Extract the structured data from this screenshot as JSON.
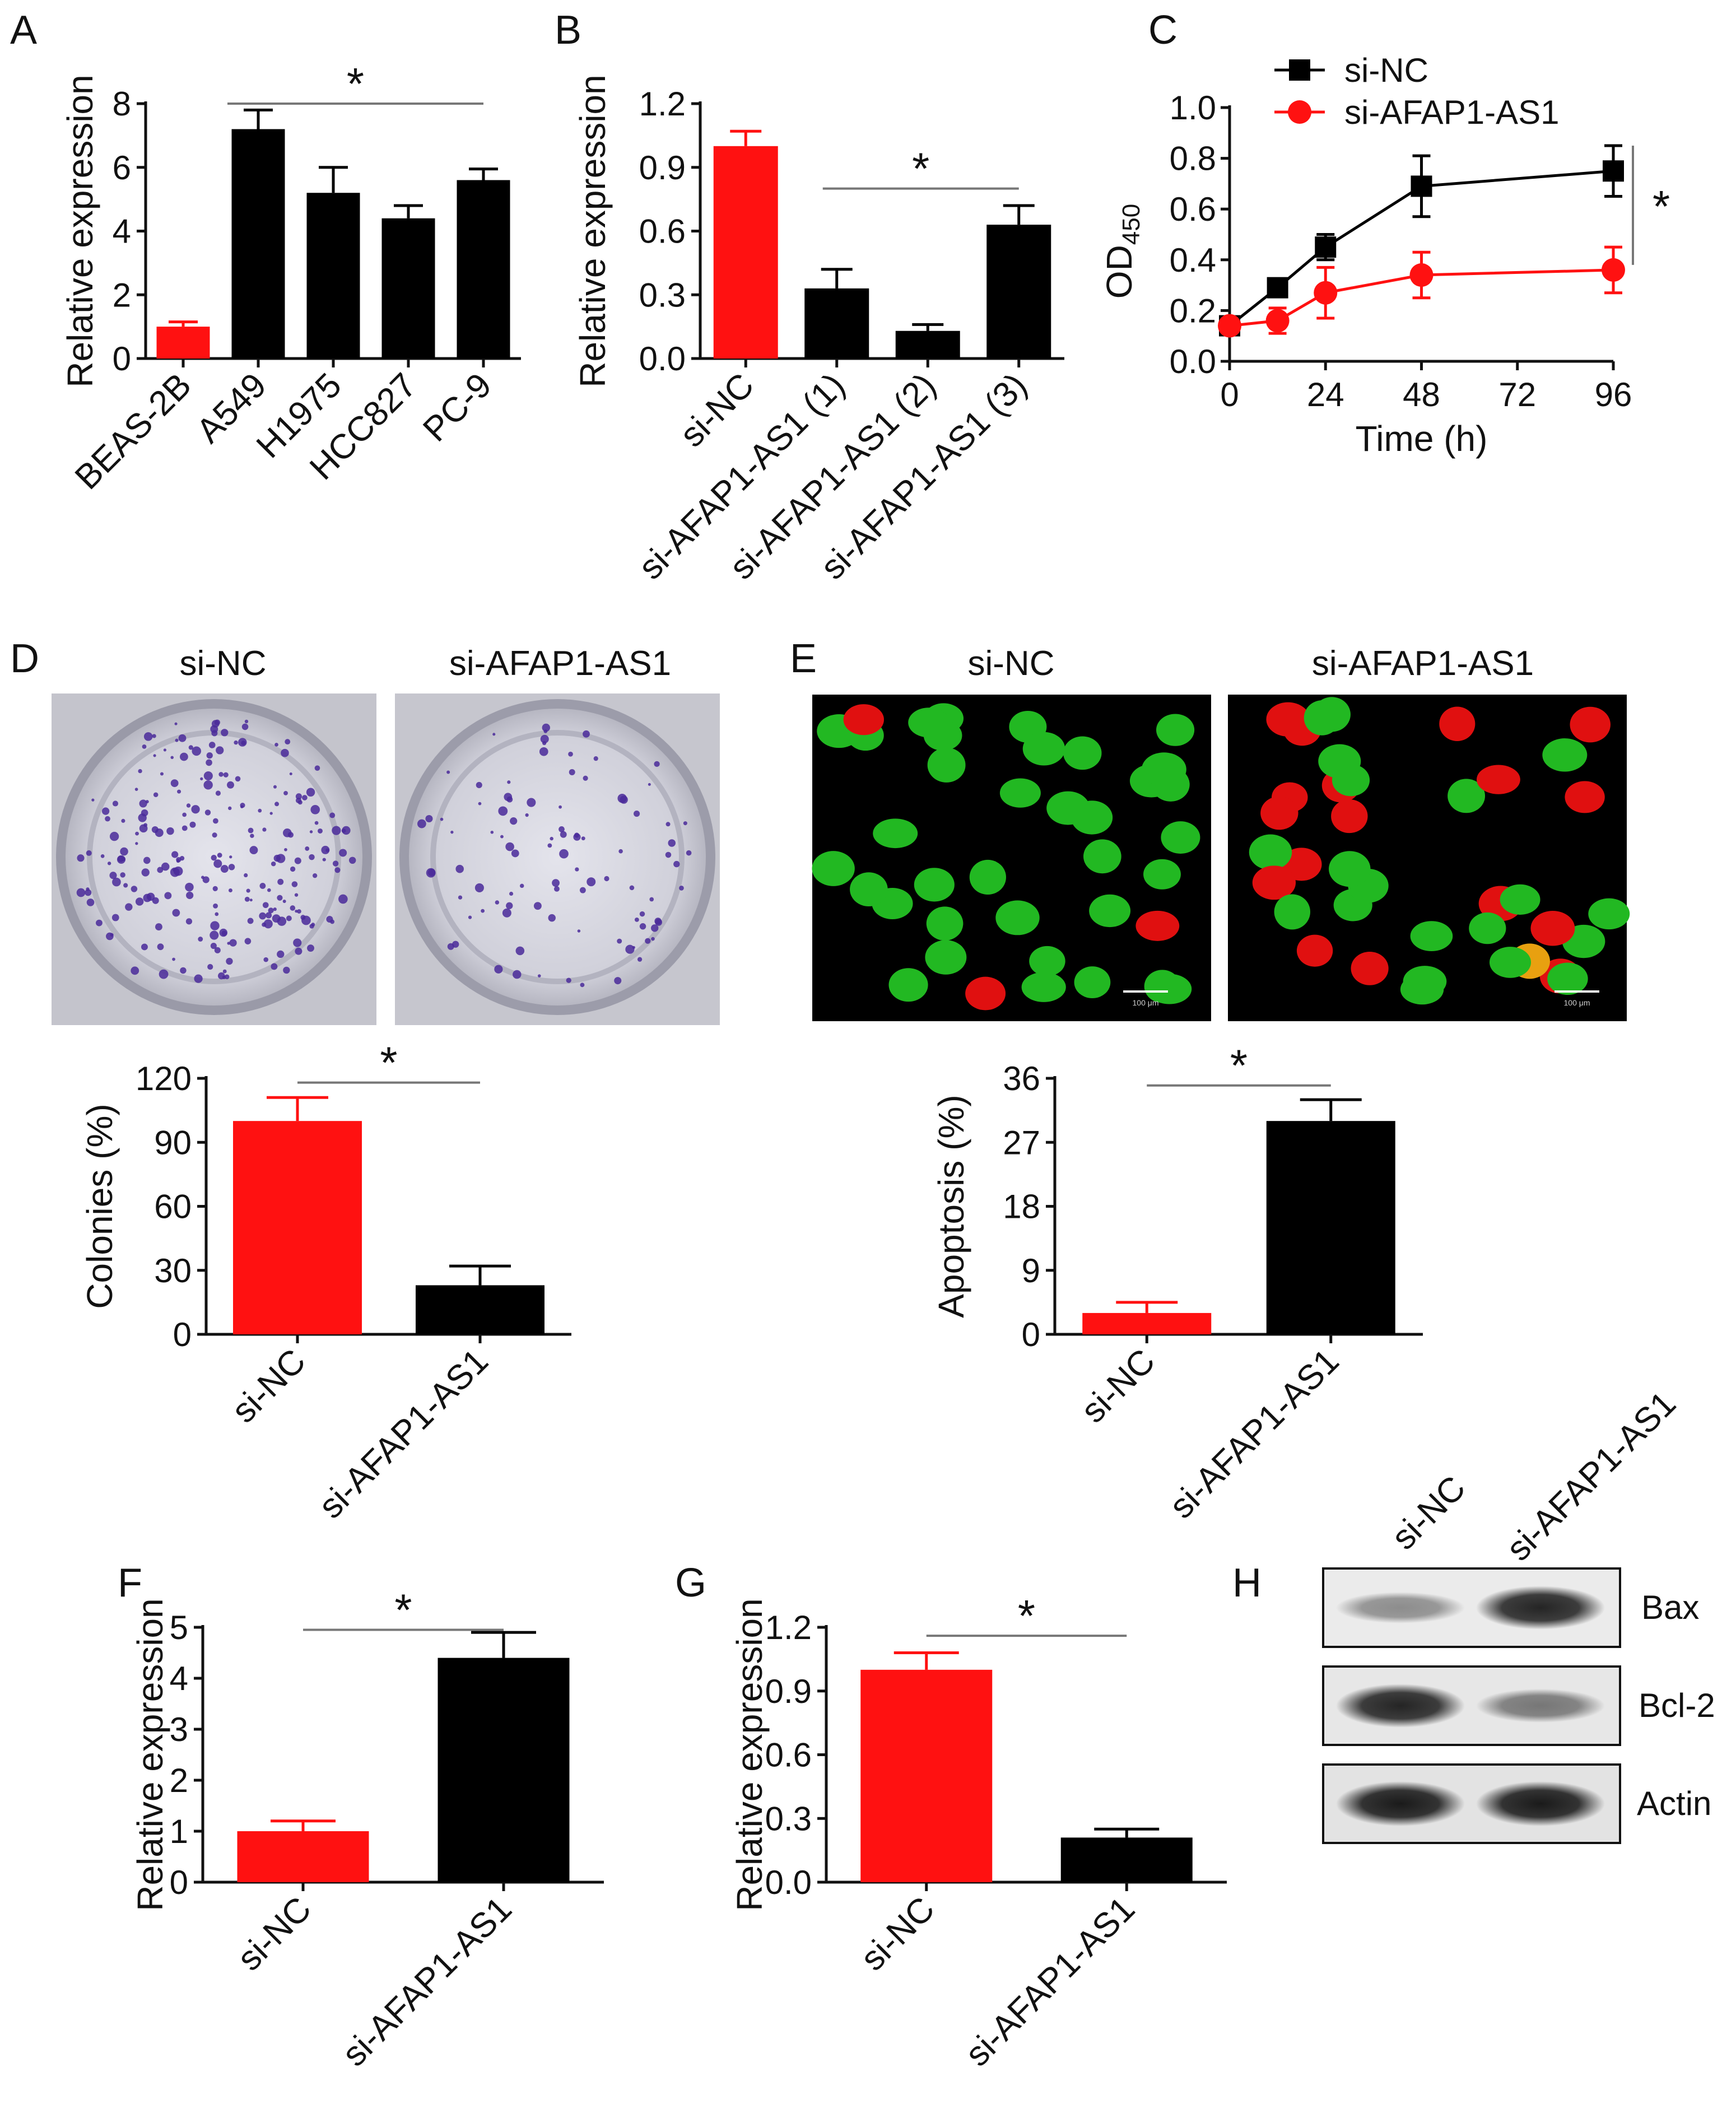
{
  "figure": {
    "panels": [
      "A",
      "B",
      "C",
      "D",
      "E",
      "F",
      "G",
      "H"
    ],
    "significance_mark": "*",
    "colors": {
      "control": "#ff1111",
      "treatment": "#000000",
      "bracket": "#777777"
    }
  },
  "chart_data": [
    {
      "panel": "A",
      "type": "bar",
      "categories": [
        "BEAS-2B",
        "A549",
        "H1975",
        "HCC827",
        "PC-9"
      ],
      "values": [
        1.0,
        7.2,
        5.2,
        4.4,
        5.6
      ],
      "errors": [
        0.15,
        0.6,
        0.8,
        0.4,
        0.35
      ],
      "colors": [
        "#ff1111",
        "#000000",
        "#000000",
        "#000000",
        "#000000"
      ],
      "ylabel": "Relative expression",
      "ylim": [
        0,
        8
      ],
      "yticks": [
        "0",
        "2",
        "4",
        "6",
        "8"
      ],
      "significance": "*"
    },
    {
      "panel": "B",
      "type": "bar",
      "categories": [
        "si-NC",
        "si-AFAP1-AS1 (1)",
        "si-AFAP1-AS1 (2)",
        "si-AFAP1-AS1 (3)"
      ],
      "values": [
        1.0,
        0.33,
        0.13,
        0.63
      ],
      "errors": [
        0.07,
        0.09,
        0.03,
        0.09
      ],
      "colors": [
        "#ff1111",
        "#000000",
        "#000000",
        "#000000"
      ],
      "ylabel": "Relative expression",
      "ylim": [
        0,
        1.2
      ],
      "yticks": [
        "0.0",
        "0.3",
        "0.6",
        "0.9",
        "1.2"
      ],
      "significance": "*"
    },
    {
      "panel": "C",
      "type": "line",
      "x": [
        0,
        12,
        24,
        48,
        96
      ],
      "series": [
        {
          "name": "si-NC",
          "values": [
            0.14,
            0.29,
            0.45,
            0.69,
            0.75
          ],
          "errors": [
            0.02,
            0.03,
            0.05,
            0.12,
            0.1
          ],
          "color": "#000000",
          "marker": "square"
        },
        {
          "name": "si-AFAP1-AS1",
          "values": [
            0.14,
            0.16,
            0.27,
            0.34,
            0.36
          ],
          "errors": [
            0.02,
            0.05,
            0.1,
            0.09,
            0.09
          ],
          "color": "#ff1111",
          "marker": "circle"
        }
      ],
      "xlabel": "Time (h)",
      "ylabel_main": "OD",
      "ylabel_sub": "450",
      "xlim": [
        0,
        96
      ],
      "ylim": [
        0,
        1.0
      ],
      "xticks": [
        "0",
        "24",
        "48",
        "72",
        "96"
      ],
      "yticks": [
        "0.0",
        "0.2",
        "0.4",
        "0.6",
        "0.8",
        "1.0"
      ],
      "significance": "*"
    },
    {
      "panel": "D",
      "type": "bar",
      "image_titles": [
        "si-NC",
        "si-AFAP1-AS1"
      ],
      "categories": [
        "si-NC",
        "si-AFAP1-AS1"
      ],
      "values": [
        100,
        23
      ],
      "errors": [
        11,
        9
      ],
      "colors": [
        "#ff1111",
        "#000000"
      ],
      "ylabel": "Colonies (%)",
      "ylim": [
        0,
        120
      ],
      "yticks": [
        "0",
        "30",
        "60",
        "90",
        "120"
      ],
      "significance": "*"
    },
    {
      "panel": "E",
      "type": "bar",
      "image_titles": [
        "si-NC",
        "si-AFAP1-AS1"
      ],
      "scale_bar": "100 μm",
      "categories": [
        "si-NC",
        "si-AFAP1-AS1"
      ],
      "values": [
        3,
        30
      ],
      "errors": [
        1.5,
        3
      ],
      "colors": [
        "#ff1111",
        "#000000"
      ],
      "ylabel": "Apoptosis (%)",
      "ylim": [
        0,
        36
      ],
      "yticks": [
        "0",
        "9",
        "18",
        "27",
        "36"
      ],
      "significance": "*"
    },
    {
      "panel": "F",
      "type": "bar",
      "categories": [
        "si-NC",
        "si-AFAP1-AS1"
      ],
      "values": [
        1.0,
        4.4
      ],
      "errors": [
        0.2,
        0.5
      ],
      "colors": [
        "#ff1111",
        "#000000"
      ],
      "ylabel": "Relative expression",
      "ylim": [
        0,
        5
      ],
      "yticks": [
        "0",
        "1",
        "2",
        "3",
        "4",
        "5"
      ],
      "significance": "*"
    },
    {
      "panel": "G",
      "type": "bar",
      "categories": [
        "si-NC",
        "si-AFAP1-AS1"
      ],
      "values": [
        1.0,
        0.21
      ],
      "errors": [
        0.08,
        0.04
      ],
      "colors": [
        "#ff1111",
        "#000000"
      ],
      "ylabel": "Relative expression",
      "ylim": [
        0,
        1.2
      ],
      "yticks": [
        "0.0",
        "0.3",
        "0.6",
        "0.9",
        "1.2"
      ],
      "significance": "*"
    }
  ],
  "blot": {
    "panel": "H",
    "lanes": [
      "si-NC",
      "si-AFAP1-AS1"
    ],
    "bands": [
      "Bax",
      "Bcl-2",
      "Actin"
    ],
    "intensity": [
      [
        0.45,
        0.95
      ],
      [
        0.95,
        0.55
      ],
      [
        1.0,
        1.0
      ]
    ]
  }
}
